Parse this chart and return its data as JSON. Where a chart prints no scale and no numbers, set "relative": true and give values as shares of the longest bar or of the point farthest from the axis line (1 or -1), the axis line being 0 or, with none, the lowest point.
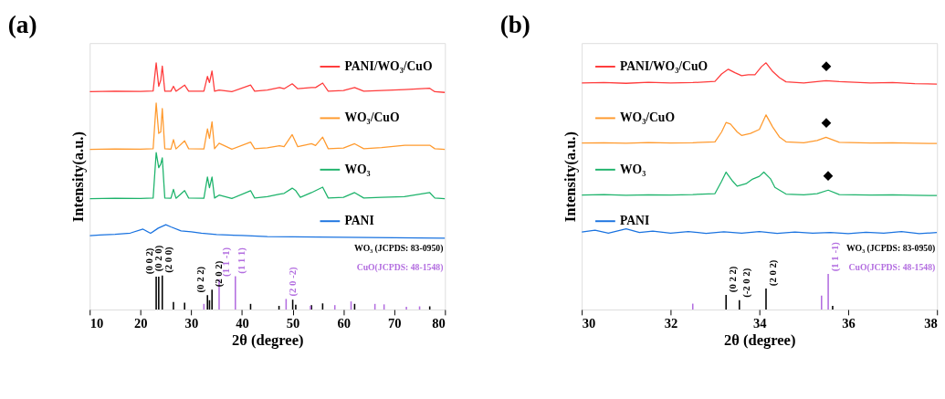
{
  "chart_data": [
    {
      "type": "line",
      "title": "(a)",
      "xlabel": "2θ (degree)",
      "ylabel": "Intensity(a.u.)",
      "relative": true,
      "xlim": [
        10,
        80
      ],
      "xticks": [
        10,
        20,
        30,
        40,
        50,
        60,
        70,
        80
      ],
      "tick_labels": "x",
      "legend": "top right",
      "marker": "none",
      "line_style": "solid",
      "grid": false,
      "series": [
        {
          "name": "PANI/WO₃/CuO",
          "color": "#ff3b3b",
          "x": [
            10,
            15,
            20,
            22.5,
            23.1,
            23.6,
            24.0,
            24.3,
            24.8,
            26,
            26.5,
            27,
            28.7,
            29.5,
            32.5,
            33.2,
            33.6,
            34.1,
            34.6,
            35.5,
            38,
            41.7,
            42.5,
            45,
            47.4,
            48.3,
            49.9,
            51,
            53.7,
            54.5,
            55.9,
            57,
            60,
            62.2,
            64,
            67.5,
            72,
            77,
            78,
            80
          ],
          "values": [
            0.883,
            0.885,
            0.884,
            0.886,
            1.0,
            0.905,
            0.93,
            0.987,
            0.885,
            0.885,
            0.905,
            0.885,
            0.91,
            0.885,
            0.885,
            0.945,
            0.92,
            0.967,
            0.885,
            0.89,
            0.883,
            0.91,
            0.885,
            0.89,
            0.9,
            0.895,
            0.915,
            0.895,
            0.9,
            0.9,
            0.918,
            0.885,
            0.888,
            0.9,
            0.885,
            0.888,
            0.892,
            0.897,
            0.883,
            0.88
          ]
        },
        {
          "name": "WO₃/CuO",
          "color": "#ff9a2e",
          "x": [
            10,
            15,
            20,
            22.5,
            23.1,
            23.6,
            24.0,
            24.3,
            24.8,
            26,
            26.5,
            27,
            28.7,
            29.5,
            32.5,
            33.2,
            33.6,
            34.1,
            34.6,
            35.5,
            38,
            41.7,
            42.5,
            45,
            47.4,
            48.3,
            49.9,
            51,
            53.7,
            54.5,
            55.9,
            57,
            60,
            62.2,
            64,
            67.5,
            72.1,
            77,
            78,
            80
          ],
          "values": [
            0.649,
            0.651,
            0.65,
            0.652,
            0.837,
            0.714,
            0.72,
            0.815,
            0.652,
            0.65,
            0.689,
            0.651,
            0.684,
            0.652,
            0.651,
            0.732,
            0.694,
            0.761,
            0.652,
            0.674,
            0.65,
            0.679,
            0.652,
            0.656,
            0.664,
            0.66,
            0.709,
            0.66,
            0.672,
            0.665,
            0.699,
            0.652,
            0.655,
            0.672,
            0.652,
            0.657,
            0.666,
            0.666,
            0.652,
            0.649
          ]
        },
        {
          "name": "WO₃",
          "color": "#1db36b",
          "x": [
            10,
            15,
            20,
            22.5,
            23.1,
            23.6,
            24.0,
            24.3,
            24.8,
            26,
            26.5,
            27,
            28.7,
            29.5,
            32.5,
            33.2,
            33.6,
            34.1,
            34.6,
            35.5,
            38,
            41.7,
            42.5,
            45,
            47.4,
            48.3,
            49.9,
            50.6,
            51.5,
            53.7,
            55.9,
            57,
            60,
            62.2,
            64,
            67.5,
            72,
            77,
            78,
            80
          ],
          "values": [
            0.449,
            0.451,
            0.45,
            0.452,
            0.636,
            0.575,
            0.59,
            0.615,
            0.452,
            0.451,
            0.487,
            0.451,
            0.482,
            0.452,
            0.451,
            0.537,
            0.494,
            0.537,
            0.452,
            0.464,
            0.45,
            0.482,
            0.452,
            0.458,
            0.468,
            0.471,
            0.492,
            0.482,
            0.455,
            0.474,
            0.496,
            0.452,
            0.455,
            0.474,
            0.452,
            0.455,
            0.458,
            0.474,
            0.452,
            0.449
          ]
        },
        {
          "name": "PANI",
          "color": "#1a73e0",
          "x": [
            10,
            12,
            15,
            18,
            20.5,
            22,
            23.5,
            25,
            26,
            28,
            30,
            32,
            35,
            40,
            45,
            50,
            55,
            60,
            65,
            70,
            75,
            80
          ],
          "values": [
            0.299,
            0.302,
            0.305,
            0.31,
            0.326,
            0.309,
            0.33,
            0.344,
            0.335,
            0.319,
            0.315,
            0.31,
            0.304,
            0.3,
            0.296,
            0.295,
            0.294,
            0.293,
            0.292,
            0.291,
            0.29,
            0.289
          ]
        },
        {
          "name": "WO₃ (JCPDS: 83-0950)",
          "type": "bar",
          "color": "#000000",
          "x": [
            23.1,
            23.6,
            24.3,
            26.5,
            28.7,
            33.2,
            33.6,
            34.1,
            41.7,
            47.3,
            50,
            50.6,
            53.7,
            55.9,
            62.2,
            77
          ],
          "values": [
            0.133,
            0.133,
            0.138,
            0.031,
            0.028,
            0.058,
            0.038,
            0.081,
            0.023,
            0.015,
            0.04,
            0.02,
            0.018,
            0.025,
            0.023,
            0.013
          ]
        },
        {
          "name": "CuO(JCPDS: 48-1548)",
          "type": "bar",
          "color": "#b36ee0",
          "x": [
            32.5,
            35.5,
            38.7,
            48.7,
            53.5,
            58.3,
            61.5,
            66.2,
            68,
            72.4,
            75
          ],
          "values": [
            0.023,
            0.123,
            0.135,
            0.043,
            0.015,
            0.018,
            0.033,
            0.023,
            0.021,
            0.011,
            0.013
          ]
        }
      ],
      "annotations": [
        {
          "text": "(0 0 2)",
          "x": 23.1,
          "y": 0.133
        },
        {
          "text": "(0 2 0)",
          "x": 23.6,
          "y": 0.133
        },
        {
          "text": "(2 0 0)",
          "x": 24.3,
          "y": 0.138
        },
        {
          "text": "(0 2 2)",
          "x": 33.2,
          "y": 0.058
        },
        {
          "text": "(2 0 2)",
          "x": 34.1,
          "y": 0.081
        },
        {
          "text": "(1 1 -1)",
          "x": 35.5,
          "y": 0.123
        },
        {
          "text": "(1 1 1)",
          "x": 38.7,
          "y": 0.135
        },
        {
          "text": "(2 0 -2)",
          "x": 48.7,
          "y": 0.043
        }
      ]
    },
    {
      "type": "line",
      "title": "(b)",
      "xlabel": "2θ (degree)",
      "ylabel": "Intensity(a.u.)",
      "relative": true,
      "xlim": [
        30,
        38
      ],
      "xticks": [
        30,
        32,
        34,
        36,
        38
      ],
      "tick_labels": "x",
      "legend": "top left",
      "marker": "none",
      "line_style": "solid",
      "grid": false,
      "series": [
        {
          "name": "PANI/WO₃/CuO",
          "color": "#ff3b3b",
          "x": [
            30,
            30.5,
            31,
            31.5,
            32,
            32.5,
            33,
            33.15,
            33.3,
            33.45,
            33.6,
            33.75,
            33.9,
            34.05,
            34.15,
            34.3,
            34.45,
            34.6,
            35,
            35.5,
            35.8,
            36.5,
            37,
            37.5,
            38
          ],
          "values": [
            0.918,
            0.92,
            0.917,
            0.921,
            0.918,
            0.92,
            0.925,
            0.955,
            0.974,
            0.96,
            0.948,
            0.952,
            0.952,
            0.985,
            1.0,
            0.965,
            0.94,
            0.923,
            0.918,
            0.928,
            0.924,
            0.918,
            0.92,
            0.916,
            0.914
          ]
        },
        {
          "name": "WO₃/CuO",
          "color": "#ff9a2e",
          "x": [
            30,
            30.5,
            31,
            31.5,
            32,
            32.5,
            33,
            33.15,
            33.25,
            33.35,
            33.5,
            33.6,
            33.8,
            34.0,
            34.15,
            34.3,
            34.45,
            34.6,
            35,
            35.3,
            35.5,
            35.8,
            36.5,
            37,
            37.5,
            38
          ],
          "values": [
            0.675,
            0.676,
            0.674,
            0.677,
            0.675,
            0.676,
            0.68,
            0.72,
            0.758,
            0.752,
            0.72,
            0.706,
            0.714,
            0.73,
            0.789,
            0.74,
            0.7,
            0.68,
            0.676,
            0.685,
            0.698,
            0.678,
            0.675,
            0.676,
            0.674,
            0.673
          ]
        },
        {
          "name": "WO₃",
          "color": "#1db36b",
          "x": [
            30,
            30.5,
            31,
            31.5,
            32,
            32.5,
            33,
            33.15,
            33.25,
            33.4,
            33.5,
            33.7,
            33.85,
            34.0,
            34.1,
            34.25,
            34.35,
            34.6,
            35,
            35.3,
            35.55,
            35.8,
            36.5,
            37,
            37.5,
            38
          ],
          "values": [
            0.464,
            0.466,
            0.463,
            0.465,
            0.464,
            0.466,
            0.47,
            0.52,
            0.557,
            0.52,
            0.5,
            0.51,
            0.529,
            0.54,
            0.557,
            0.53,
            0.495,
            0.468,
            0.465,
            0.47,
            0.484,
            0.466,
            0.464,
            0.465,
            0.463,
            0.462
          ]
        },
        {
          "name": "PANI",
          "color": "#1a73e0",
          "x": [
            30,
            30.3,
            30.6,
            31,
            31.3,
            31.6,
            32,
            32.4,
            32.8,
            33.2,
            33.6,
            34,
            34.4,
            34.8,
            35.2,
            35.6,
            36,
            36.4,
            36.8,
            37.2,
            37.6,
            38
          ],
          "values": [
            0.314,
            0.322,
            0.31,
            0.327,
            0.312,
            0.318,
            0.31,
            0.316,
            0.309,
            0.315,
            0.31,
            0.316,
            0.309,
            0.314,
            0.31,
            0.312,
            0.308,
            0.313,
            0.31,
            0.316,
            0.308,
            0.312
          ]
        },
        {
          "name": "WO₃ (JCPDS: 83-0950)",
          "type": "bar",
          "color": "#000000",
          "x": [
            33.25,
            33.55,
            34.15,
            35.65
          ],
          "values": [
            0.059,
            0.038,
            0.085,
            0.015
          ]
        },
        {
          "name": "CuO(JCPDS: 48-1548)",
          "type": "bar",
          "color": "#b36ee0",
          "x": [
            32.5,
            35.4,
            35.55
          ],
          "values": [
            0.024,
            0.057,
            0.144
          ]
        }
      ],
      "annotations": [
        {
          "text": "(0 2 2)",
          "x": 33.25,
          "y": 0.059
        },
        {
          "text": "(-2 0 2)",
          "x": 33.55,
          "y": 0.038
        },
        {
          "text": "(2 0 2)",
          "x": 34.15,
          "y": 0.085
        },
        {
          "text": "(1 1 -1)",
          "x": 35.55,
          "y": 0.144
        },
        {
          "text": "◆",
          "x": 35.5,
          "y": 0.928
        },
        {
          "text": "◆",
          "x": 35.5,
          "y": 0.698
        },
        {
          "text": "◆",
          "x": 35.55,
          "y": 0.484
        }
      ]
    }
  ]
}
